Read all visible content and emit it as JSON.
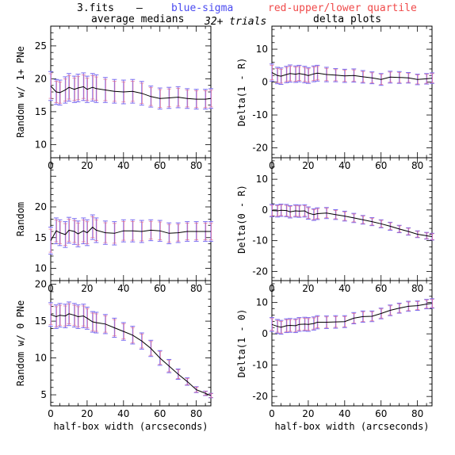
{
  "header": {
    "file": "3.fits",
    "dash": "–",
    "legend_sigma": "blue-sigma",
    "legend_quartile": "red-upper/lower quartile",
    "trials": "32+ trials",
    "col_left_title": "average medians",
    "col_right_title": "delta plots"
  },
  "colors": {
    "line": "#000000",
    "sigma": "#7b6cf0",
    "quartile": "#e0608a",
    "legend_blue": "#4a4af0",
    "legend_red": "#f04a4a"
  },
  "chart_data": [
    {
      "type": "line",
      "panel": "left-top",
      "title": "average medians",
      "xlabel": "",
      "ylabel": "Random w/ 1+ PNe",
      "xlim": [
        0,
        88
      ],
      "ylim": [
        8,
        28
      ],
      "xticks": [
        0,
        20,
        40,
        60,
        80
      ],
      "yticks": [
        10,
        15,
        20,
        25
      ],
      "x": [
        0,
        3,
        5,
        8,
        10,
        13,
        15,
        18,
        20,
        23,
        25,
        30,
        35,
        40,
        45,
        50,
        55,
        60,
        65,
        70,
        75,
        80,
        85,
        88
      ],
      "y": [
        18.9,
        18.0,
        17.9,
        18.3,
        18.7,
        18.4,
        18.6,
        18.8,
        18.4,
        18.7,
        18.5,
        18.3,
        18.1,
        18.0,
        18.1,
        17.8,
        17.3,
        17.0,
        17.1,
        17.2,
        17.0,
        16.9,
        16.9,
        17.0
      ],
      "err": [
        2.2,
        1.9,
        1.9,
        2.0,
        2.1,
        2.0,
        2.1,
        2.1,
        2.0,
        2.1,
        2.1,
        1.9,
        1.8,
        1.8,
        1.8,
        1.8,
        1.6,
        1.6,
        1.6,
        1.6,
        1.5,
        1.5,
        1.5,
        1.5
      ]
    },
    {
      "type": "line",
      "panel": "right-top",
      "title": "delta plots",
      "xlabel": "",
      "ylabel": "Delta(1 - R)",
      "xlim": [
        0,
        88
      ],
      "ylim": [
        -23,
        17
      ],
      "xticks": [
        0,
        20,
        40,
        60,
        80
      ],
      "yticks": [
        -20,
        -10,
        0,
        10
      ],
      "x": [
        0,
        3,
        5,
        8,
        10,
        13,
        15,
        18,
        20,
        23,
        25,
        30,
        35,
        40,
        45,
        50,
        55,
        60,
        65,
        70,
        75,
        80,
        85,
        88
      ],
      "y": [
        2.9,
        2.0,
        1.8,
        2.3,
        2.6,
        2.4,
        2.6,
        2.3,
        2.0,
        2.5,
        2.7,
        2.3,
        2.1,
        1.9,
        2.0,
        1.6,
        1.3,
        0.8,
        1.5,
        1.4,
        1.3,
        0.8,
        1.0,
        1.2
      ],
      "err": [
        2.6,
        2.5,
        2.5,
        2.5,
        2.6,
        2.5,
        2.5,
        2.5,
        2.4,
        2.4,
        2.4,
        2.2,
        2.0,
        2.0,
        2.0,
        1.9,
        1.8,
        1.8,
        1.8,
        1.8,
        1.6,
        1.6,
        1.6,
        1.6
      ]
    },
    {
      "type": "line",
      "panel": "left-middle",
      "title": "",
      "xlabel": "",
      "ylabel": "Random",
      "xlim": [
        0,
        88
      ],
      "ylim": [
        8,
        28
      ],
      "xticks": [
        0,
        20,
        40,
        60,
        80
      ],
      "yticks": [
        10,
        15,
        20
      ],
      "x": [
        0,
        3,
        5,
        8,
        10,
        13,
        15,
        18,
        20,
        23,
        25,
        30,
        35,
        40,
        45,
        50,
        55,
        60,
        65,
        70,
        75,
        80,
        85,
        88
      ],
      "y": [
        14.5,
        16.1,
        15.8,
        15.5,
        16.2,
        16.0,
        15.6,
        16.1,
        15.8,
        16.7,
        16.2,
        15.8,
        15.7,
        16.1,
        16.1,
        16.0,
        16.2,
        16.1,
        15.7,
        15.8,
        16.0,
        16.0,
        16.0,
        16.0
      ],
      "err": [
        2.2,
        2.1,
        2.1,
        2.1,
        2.1,
        2.1,
        2.1,
        2.1,
        2.1,
        2.0,
        2.0,
        1.9,
        1.9,
        1.8,
        1.8,
        1.8,
        1.7,
        1.7,
        1.7,
        1.6,
        1.6,
        1.6,
        1.6,
        1.6
      ]
    },
    {
      "type": "line",
      "panel": "right-middle",
      "title": "",
      "xlabel": "",
      "ylabel": "Delta(0 - R)",
      "xlim": [
        0,
        88
      ],
      "ylim": [
        -23,
        17
      ],
      "xticks": [
        0,
        20,
        40,
        60,
        80
      ],
      "yticks": [
        -20,
        -10,
        0,
        10
      ],
      "x": [
        0,
        3,
        5,
        8,
        10,
        13,
        15,
        18,
        20,
        23,
        25,
        30,
        35,
        40,
        45,
        50,
        55,
        60,
        65,
        70,
        75,
        80,
        85,
        88
      ],
      "y": [
        -0.2,
        -0.3,
        -0.1,
        -0.2,
        -0.6,
        -0.3,
        -0.4,
        -0.3,
        -1.0,
        -1.5,
        -1.2,
        -1.0,
        -1.5,
        -2.0,
        -2.6,
        -3.2,
        -3.8,
        -4.5,
        -5.3,
        -6.2,
        -7.0,
        -7.9,
        -8.4,
        -8.7
      ],
      "err": [
        2.0,
        2.0,
        2.0,
        2.0,
        2.0,
        2.0,
        2.0,
        2.0,
        2.0,
        1.9,
        1.9,
        1.8,
        1.6,
        1.6,
        1.5,
        1.4,
        1.3,
        1.3,
        1.3,
        1.2,
        1.2,
        1.1,
        1.1,
        1.1
      ]
    },
    {
      "type": "line",
      "panel": "left-bottom",
      "title": "",
      "xlabel": "half-box width (arcseconds)",
      "ylabel": "Random w/ 0 PNe",
      "xlim": [
        0,
        88
      ],
      "ylim": [
        3.5,
        20.5
      ],
      "xticks": [
        0,
        20,
        40,
        60,
        80
      ],
      "yticks": [
        5,
        10,
        15,
        20
      ],
      "x": [
        0,
        3,
        5,
        8,
        10,
        13,
        15,
        18,
        20,
        23,
        25,
        30,
        35,
        40,
        45,
        50,
        55,
        60,
        65,
        70,
        75,
        80,
        85,
        88
      ],
      "y": [
        15.9,
        15.6,
        15.8,
        15.7,
        16.0,
        15.8,
        15.6,
        15.7,
        15.4,
        14.9,
        14.8,
        14.6,
        14.1,
        13.6,
        13.1,
        12.3,
        11.3,
        10.0,
        8.9,
        7.8,
        6.8,
        5.7,
        5.2,
        4.9
      ],
      "err": [
        1.6,
        1.6,
        1.6,
        1.6,
        1.6,
        1.6,
        1.6,
        1.6,
        1.5,
        1.4,
        1.4,
        1.3,
        1.3,
        1.2,
        1.2,
        1.1,
        1.1,
        1.0,
        0.9,
        0.7,
        0.5,
        0.4,
        0.3,
        0.3
      ]
    },
    {
      "type": "line",
      "panel": "right-bottom",
      "title": "",
      "xlabel": "half-box width (arcseconds)",
      "ylabel": "Delta(1 - 0)",
      "xlim": [
        0,
        88
      ],
      "ylim": [
        -23,
        17
      ],
      "xticks": [
        0,
        20,
        40,
        60,
        80
      ],
      "yticks": [
        -20,
        -10,
        0,
        10
      ],
      "x": [
        0,
        3,
        5,
        8,
        10,
        13,
        15,
        18,
        20,
        23,
        25,
        30,
        35,
        40,
        45,
        50,
        55,
        60,
        65,
        70,
        75,
        80,
        85,
        88
      ],
      "y": [
        3.0,
        2.4,
        2.1,
        2.6,
        2.7,
        2.6,
        3.0,
        3.1,
        3.0,
        3.3,
        3.7,
        3.7,
        3.8,
        3.9,
        5.0,
        5.5,
        5.6,
        6.5,
        7.5,
        8.2,
        8.8,
        9.0,
        9.5,
        9.7
      ],
      "err": [
        2.2,
        2.2,
        2.2,
        2.2,
        2.2,
        2.2,
        2.2,
        2.2,
        2.2,
        2.1,
        2.1,
        2.0,
        2.0,
        1.9,
        1.8,
        1.8,
        1.7,
        1.7,
        1.7,
        1.6,
        1.6,
        1.5,
        1.5,
        1.5
      ]
    }
  ]
}
